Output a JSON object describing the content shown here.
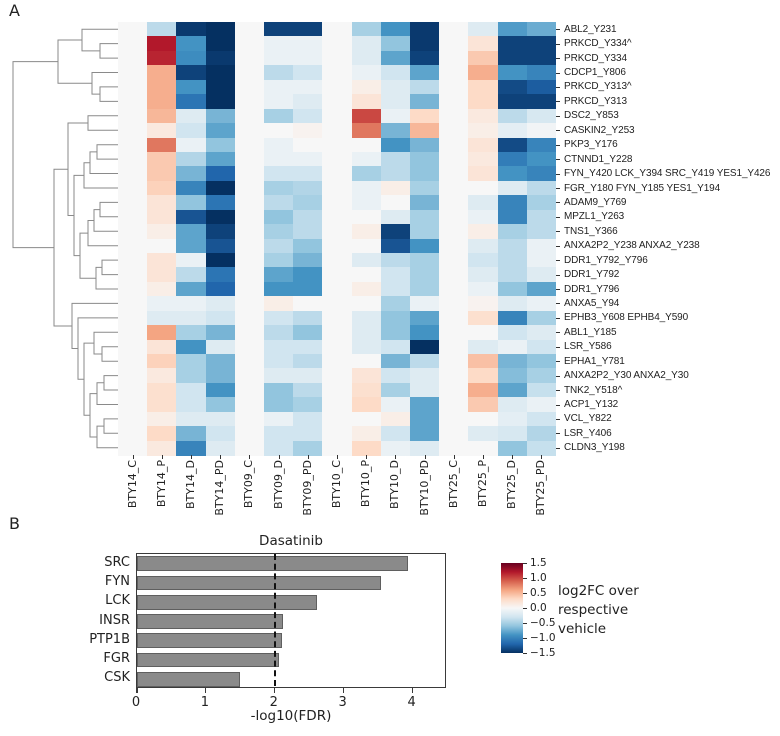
{
  "figure": {
    "panel_a_label": "A",
    "panel_b_label": "B"
  },
  "chart_data": [
    {
      "type": "heatmap",
      "title": "",
      "columns": [
        "BTY14_C",
        "BTY14_P",
        "BTY14_D",
        "BTY14_PD",
        "BTY09_C",
        "BTY09_D",
        "BTY09_PD",
        "BTY10_C",
        "BTY10_P",
        "BTY10_D",
        "BTY10_PD",
        "BTY25_C",
        "BTY25_P",
        "BTY25_D",
        "BTY25_PD"
      ],
      "rows": [
        "ABL2_Y231",
        "PRKCD_Y334^",
        "PRKCD_Y334",
        "CDCP1_Y806",
        "PRKCD_Y313^",
        "PRKCD_Y313",
        "DSC2_Y853",
        "CASKIN2_Y253",
        "PKP3_Y176",
        "CTNND1_Y228",
        "FYN_Y420 LCK_Y394 SRC_Y419 YES1_Y426",
        "FGR_Y180 FYN_Y185 YES1_Y194",
        "ADAM9_Y769",
        "MPZL1_Y263",
        "TNS1_Y366",
        "ANXA2P2_Y238 ANXA2_Y238",
        "DDR1_Y792_Y796",
        "DDR1_Y792",
        "DDR1_Y796",
        "ANXA5_Y94",
        "EPHB3_Y608 EPHB4_Y590",
        "ABL1_Y185",
        "LSR_Y586",
        "EPHA1_Y781",
        "ANXA2P2_Y30 ANXA2_Y30",
        "TNK2_Y518^",
        "ACP1_Y132",
        "VCL_Y822",
        "LSR_Y406",
        "CLDN3_Y198"
      ],
      "values": [
        [
          0,
          -0.4,
          -1.45,
          -1.5,
          0,
          -1.4,
          -1.4,
          0,
          -0.5,
          -0.9,
          -1.45,
          0,
          -0.2,
          -0.85,
          -0.75
        ],
        [
          0,
          1.2,
          -0.9,
          -1.5,
          0,
          -0.1,
          -0.1,
          0,
          -0.2,
          -0.6,
          -1.45,
          0,
          0.2,
          -1.4,
          -1.4
        ],
        [
          0,
          1.15,
          -0.95,
          -1.45,
          0,
          -0.1,
          -0.1,
          0,
          -0.2,
          -0.8,
          -1.4,
          0,
          0.4,
          -1.4,
          -1.4
        ],
        [
          0,
          0.55,
          -1.4,
          -1.5,
          0,
          -0.4,
          -0.3,
          0,
          -0.1,
          -0.3,
          -0.8,
          0,
          0.55,
          -0.9,
          -1.0
        ],
        [
          0,
          0.55,
          -0.9,
          -1.5,
          0,
          -0.1,
          -0.1,
          0,
          0.1,
          -0.2,
          -0.4,
          0,
          0.3,
          -1.35,
          -1.25
        ],
        [
          0,
          0.55,
          -1.1,
          -1.5,
          0,
          -0.1,
          -0.2,
          0,
          0.2,
          -0.2,
          -0.7,
          0,
          0.3,
          -1.4,
          -1.4
        ],
        [
          0,
          0.5,
          -0.2,
          -0.7,
          0,
          -0.5,
          -0.3,
          0,
          1.0,
          -0.1,
          0.3,
          0,
          0.15,
          -0.4,
          -0.25
        ],
        [
          0,
          0.15,
          -0.3,
          -0.8,
          0,
          0.0,
          0.05,
          0,
          0.8,
          -0.7,
          0.5,
          0,
          0.1,
          -0.15,
          -0.05
        ],
        [
          0,
          0.8,
          -0.1,
          -0.6,
          0,
          -0.1,
          0.0,
          0,
          0.0,
          -0.9,
          -0.7,
          0,
          0.2,
          -1.35,
          -1.0
        ],
        [
          0,
          0.4,
          -0.45,
          -0.8,
          0,
          -0.1,
          -0.1,
          0,
          -0.1,
          -0.4,
          -0.6,
          0,
          0.15,
          -1.05,
          -0.9
        ],
        [
          0,
          0.4,
          -0.7,
          -1.2,
          0,
          -0.3,
          -0.3,
          0,
          -0.5,
          -0.4,
          -0.6,
          0,
          0.2,
          -0.9,
          -1.0
        ],
        [
          0,
          0.35,
          -1.0,
          -1.5,
          0,
          -0.5,
          -0.45,
          0,
          -0.1,
          0.1,
          -0.5,
          0,
          0.0,
          -0.2,
          -0.4
        ],
        [
          0,
          0.2,
          -0.6,
          -1.1,
          0,
          -0.4,
          -0.5,
          0,
          -0.1,
          0.0,
          -0.7,
          0,
          -0.2,
          -1.0,
          -0.5
        ],
        [
          0,
          0.2,
          -1.3,
          -1.5,
          0,
          -0.6,
          -0.4,
          0,
          0.0,
          -0.2,
          -0.5,
          0,
          -0.1,
          -1.0,
          -0.4
        ],
        [
          0,
          0.1,
          -0.8,
          -1.4,
          0,
          -0.5,
          -0.4,
          0,
          0.1,
          -1.4,
          -0.5,
          0,
          0.1,
          -0.5,
          -0.4
        ],
        [
          0,
          0.0,
          -0.8,
          -1.3,
          0,
          -0.4,
          -0.6,
          0,
          0.0,
          -1.3,
          -0.9,
          0,
          -0.2,
          -0.4,
          -0.1
        ],
        [
          0,
          0.2,
          -0.1,
          -1.5,
          0,
          -0.5,
          -0.7,
          0,
          -0.2,
          -0.4,
          -0.5,
          0,
          -0.3,
          -0.4,
          -0.1
        ],
        [
          0,
          0.2,
          -0.4,
          -1.1,
          0,
          -0.8,
          -0.9,
          0,
          0.0,
          -0.3,
          -0.5,
          0,
          -0.2,
          -0.4,
          -0.2
        ],
        [
          0,
          0.1,
          -0.8,
          -1.2,
          0,
          -0.9,
          -0.9,
          0,
          0.1,
          -0.3,
          -0.5,
          0,
          -0.1,
          -0.6,
          -0.8
        ],
        [
          0,
          -0.1,
          -0.1,
          -0.2,
          0,
          0.1,
          0.0,
          0,
          0.0,
          -0.5,
          -0.1,
          0,
          0.05,
          -0.2,
          -0.1
        ],
        [
          0,
          -0.2,
          -0.2,
          -0.3,
          0,
          -0.3,
          -0.4,
          0,
          -0.2,
          -0.6,
          -0.8,
          0,
          0.25,
          -1.0,
          -0.5
        ],
        [
          0,
          0.6,
          -0.5,
          -0.7,
          0,
          -0.4,
          -0.6,
          0,
          -0.2,
          -0.6,
          -0.9,
          0,
          0.0,
          -0.3,
          -0.2
        ],
        [
          0,
          0.2,
          -0.9,
          -0.2,
          0,
          -0.3,
          -0.3,
          0,
          -0.2,
          -0.3,
          -1.5,
          0,
          -0.2,
          -0.1,
          -0.3
        ],
        [
          0,
          0.35,
          -0.5,
          -0.7,
          0,
          -0.3,
          -0.4,
          0,
          0.0,
          -0.7,
          -0.4,
          0,
          0.45,
          -0.7,
          -0.6
        ],
        [
          0,
          0.15,
          -0.5,
          -0.7,
          0,
          -0.2,
          -0.2,
          0,
          0.2,
          -0.3,
          -0.2,
          0,
          0.3,
          -0.65,
          -0.5
        ],
        [
          0,
          0.25,
          -0.3,
          -0.9,
          0,
          -0.6,
          -0.4,
          0,
          0.25,
          -0.5,
          -0.2,
          0,
          0.55,
          -0.8,
          -0.35
        ],
        [
          0,
          0.25,
          -0.3,
          -0.6,
          0,
          -0.6,
          -0.5,
          0,
          0.3,
          -0.1,
          -0.8,
          0,
          0.4,
          -0.2,
          -0.1
        ],
        [
          0,
          0.1,
          -0.2,
          -0.2,
          0,
          -0.1,
          -0.3,
          0,
          0.0,
          0.1,
          -0.8,
          0,
          0.0,
          -0.15,
          -0.3
        ],
        [
          0,
          0.3,
          -0.7,
          -0.3,
          0,
          -0.3,
          -0.3,
          0,
          0.1,
          -0.3,
          -0.8,
          0,
          -0.2,
          -0.25,
          -0.45
        ],
        [
          0,
          0.15,
          -1.0,
          -0.2,
          0,
          -0.3,
          -0.5,
          0,
          0.3,
          -0.1,
          -0.2,
          0,
          0.0,
          -0.6,
          -0.35
        ]
      ],
      "vmin": -1.5,
      "vmax": 1.5,
      "colormap": "RdBu_r (dark blue = -1.5, white = 0, dark red = +1.5)"
    },
    {
      "type": "bar",
      "orientation": "horizontal",
      "title": "Dasatinib",
      "categories": [
        "SRC",
        "FYN",
        "LCK",
        "INSR",
        "PTP1B",
        "FGR",
        "CSK"
      ],
      "values": [
        3.93,
        3.54,
        2.61,
        2.12,
        2.11,
        2.06,
        1.5
      ],
      "xlabel": "-log10(FDR)",
      "xlim": [
        0,
        4.5
      ],
      "xticks": [
        0,
        1,
        2,
        3,
        4
      ],
      "threshold_line_x": 2,
      "bar_color": "#8a8a8a"
    }
  ],
  "colorbar": {
    "tick_labels": [
      "1.5",
      "1.0",
      "0.5",
      "0.0",
      "−0.5",
      "−1.0",
      "−1.5"
    ],
    "tick_values": [
      1.5,
      1.0,
      0.5,
      0.0,
      -0.5,
      -1.0,
      -1.5
    ],
    "label_lines": [
      "log2FC over",
      "respective",
      "vehicle"
    ],
    "top_color": "#67001f",
    "mid_color": "#f7f7f7",
    "bottom_color": "#053061"
  }
}
